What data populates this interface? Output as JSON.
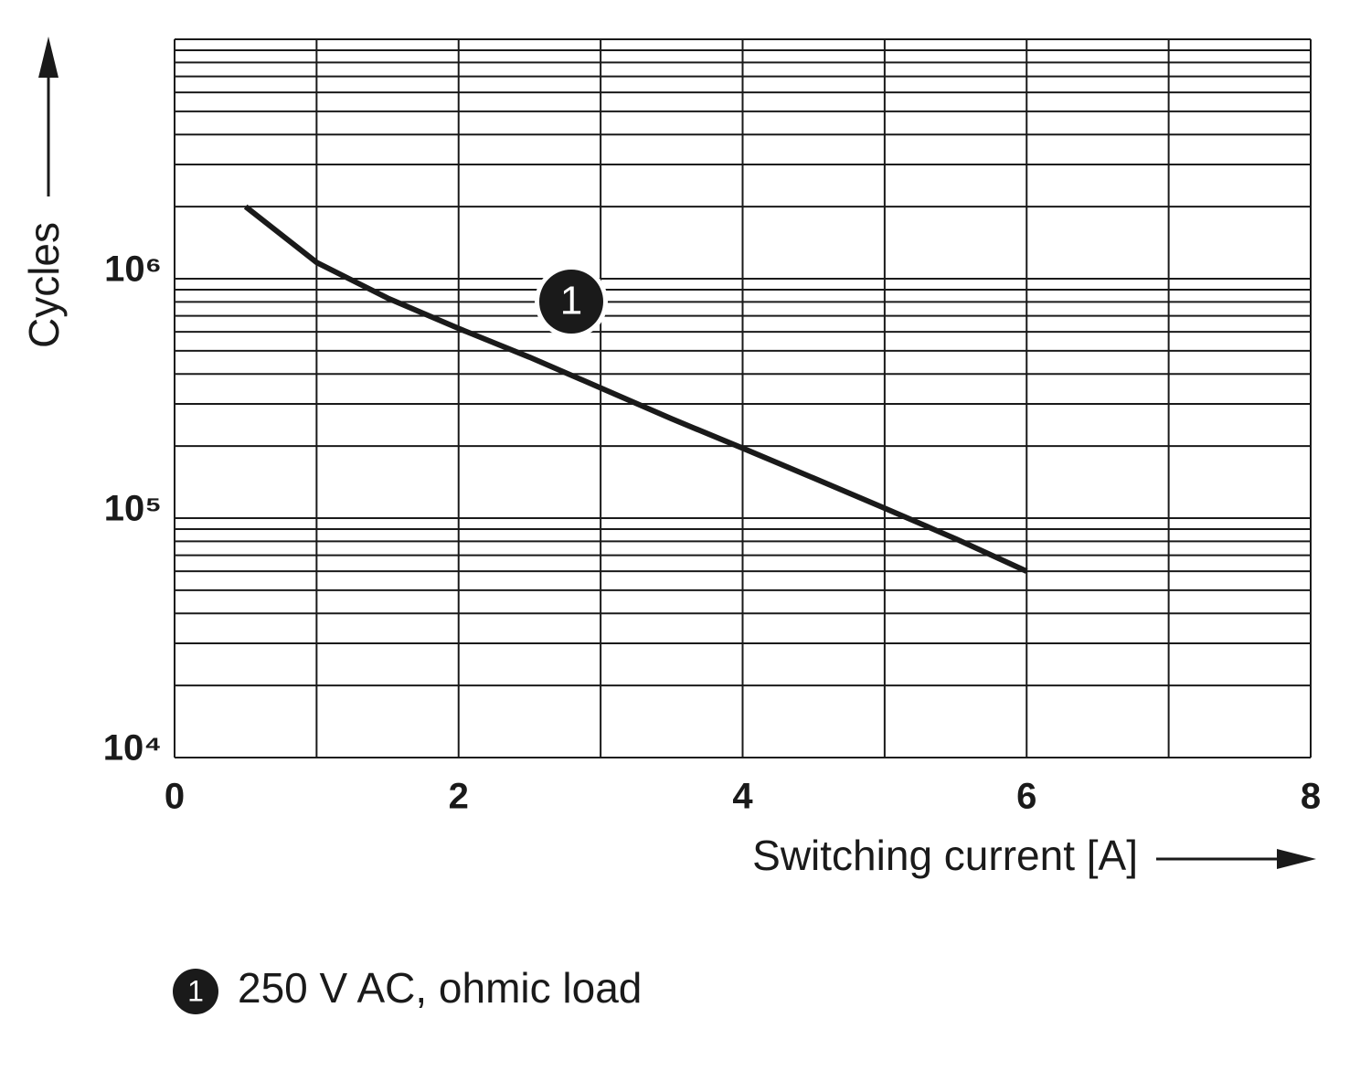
{
  "chart_data": {
    "type": "line",
    "x_label": "Switching current [A]",
    "y_label": "Cycles",
    "log_y": true,
    "grid": true,
    "xlim": [
      0,
      8
    ],
    "xticks": [
      0,
      2,
      4,
      6,
      8
    ],
    "x_minor_grid": [
      1,
      3,
      5,
      7
    ],
    "ylim": [
      10000,
      10000000
    ],
    "yticks": [
      {
        "value": 10000,
        "label": "10⁴"
      },
      {
        "value": 100000,
        "label": "10⁵"
      },
      {
        "value": 1000000,
        "label": "10⁶"
      }
    ],
    "y_minor_grid": [
      20000,
      30000,
      40000,
      50000,
      60000,
      70000,
      80000,
      90000,
      200000,
      300000,
      400000,
      500000,
      600000,
      700000,
      800000,
      900000,
      2000000,
      3000000,
      4000000,
      5000000,
      6000000,
      7000000,
      8000000,
      9000000
    ],
    "series": [
      {
        "name": "250 V AC, ohmic load",
        "label": "1",
        "color": "#1a1a1a",
        "x": [
          0.5,
          1,
          1.5,
          2,
          2.5,
          3,
          3.5,
          4,
          4.5,
          5,
          5.5,
          6
        ],
        "values": [
          2000000,
          1170000,
          830000,
          620000,
          470000,
          350000,
          260000,
          196000,
          147000,
          110000,
          82000,
          60000
        ]
      }
    ]
  }
}
